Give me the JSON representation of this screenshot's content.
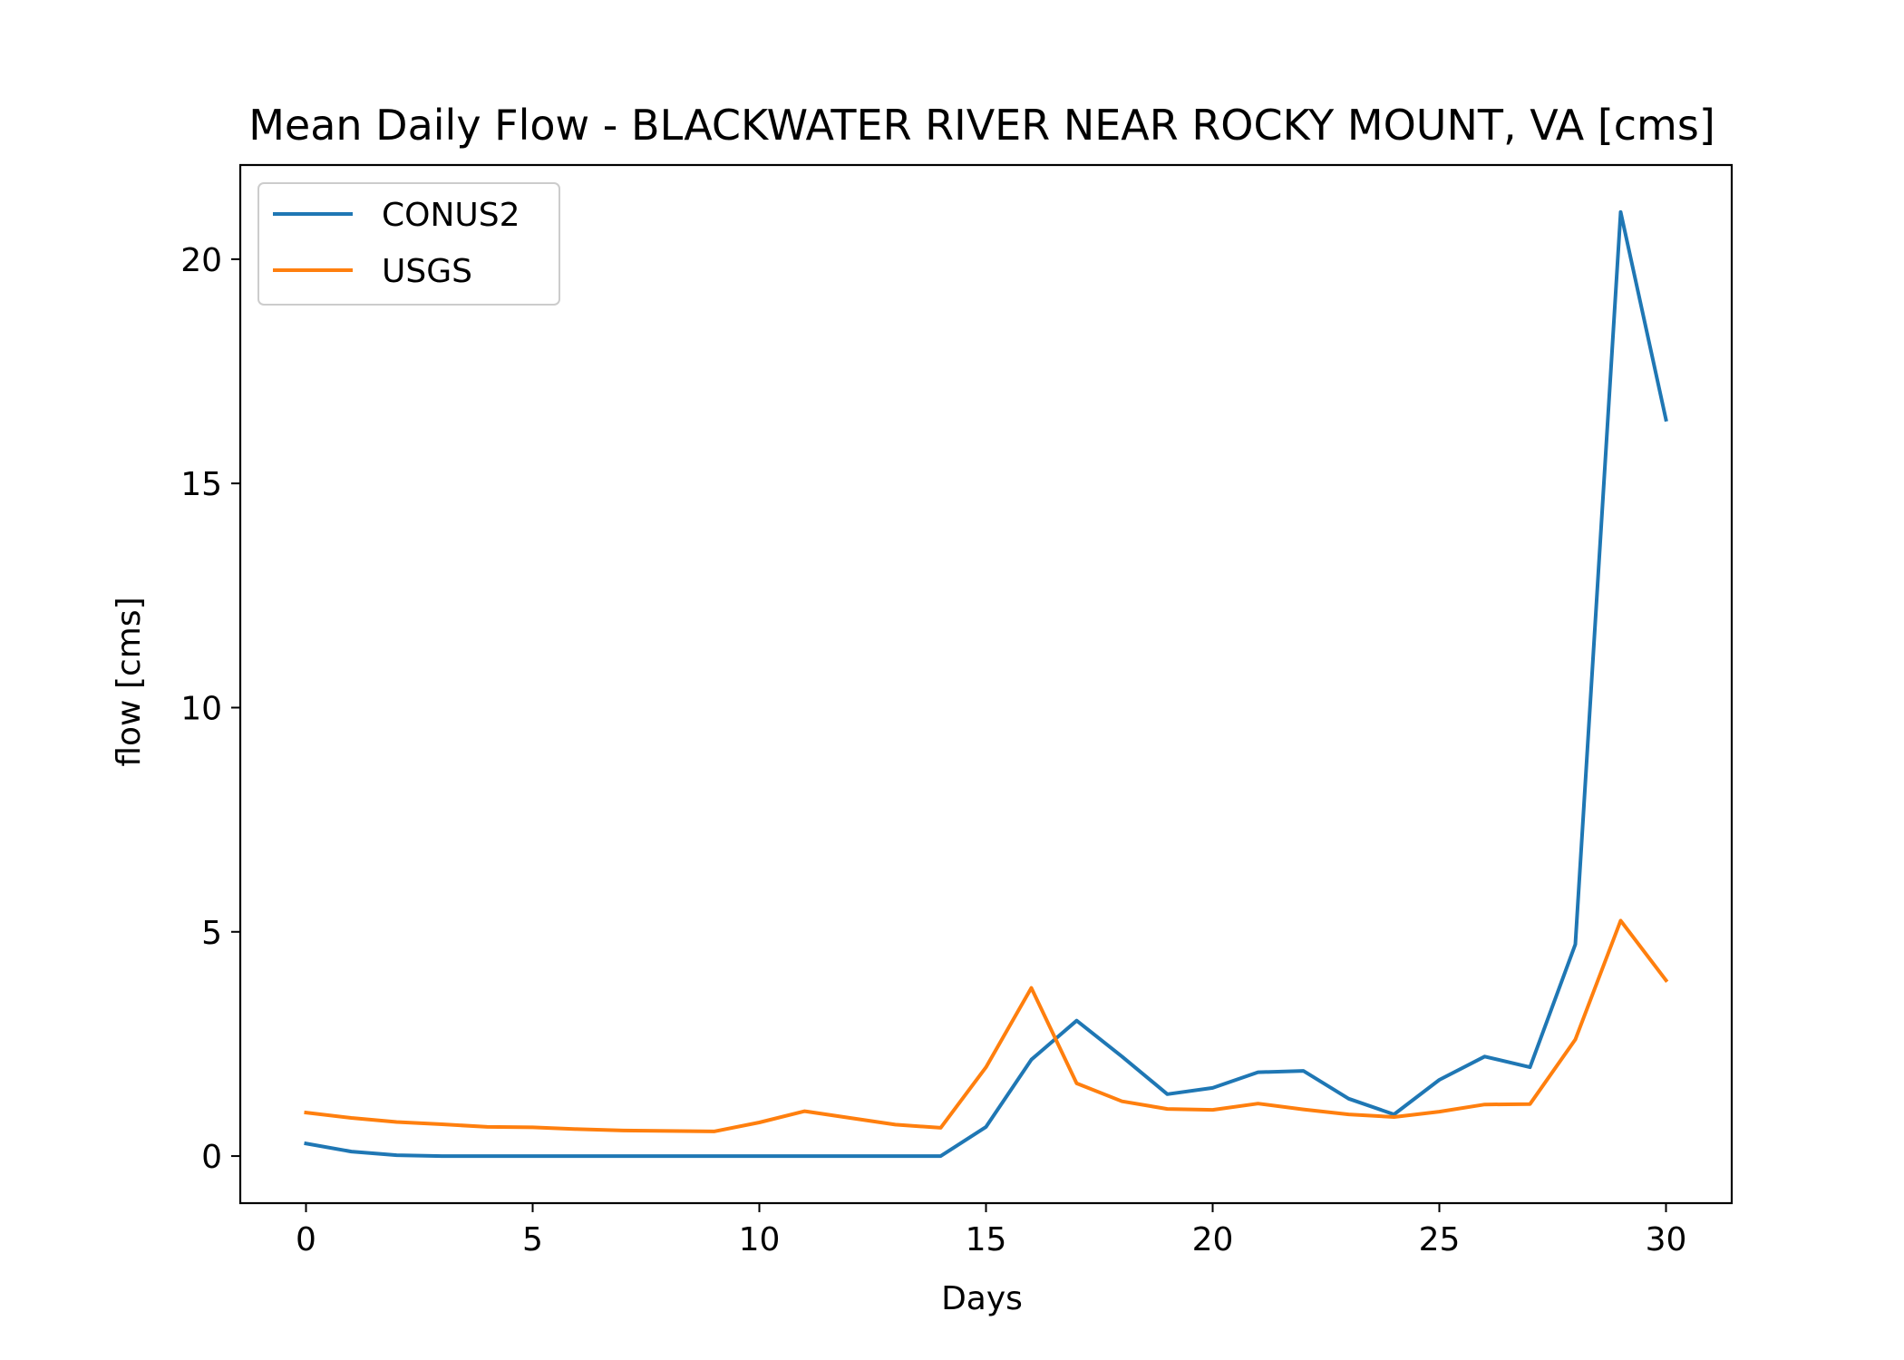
{
  "chart_data": {
    "type": "line",
    "title": "Mean Daily Flow - BLACKWATER RIVER NEAR ROCKY MOUNT, VA [cms]",
    "xlabel": "Days",
    "ylabel": "flow [cms]",
    "xlim": [
      -1.45,
      31.45
    ],
    "ylim": [
      -1.05,
      22.1
    ],
    "xticks": [
      0,
      5,
      10,
      15,
      20,
      25,
      30
    ],
    "yticks": [
      0,
      5,
      10,
      15,
      20
    ],
    "grid": false,
    "legend_position": "top-left",
    "x": [
      0,
      1,
      2,
      3,
      4,
      5,
      6,
      7,
      8,
      9,
      10,
      11,
      12,
      13,
      14,
      15,
      16,
      17,
      18,
      19,
      20,
      21,
      22,
      23,
      24,
      25,
      26,
      27,
      28,
      29,
      30
    ],
    "series": [
      {
        "name": "CONUS2",
        "color": "#1f77b4",
        "values": [
          0.28,
          0.1,
          0.02,
          0.0,
          0.0,
          0.0,
          0.0,
          0.0,
          0.0,
          0.0,
          0.0,
          0.0,
          0.0,
          0.0,
          0.0,
          0.65,
          2.15,
          3.02,
          2.22,
          1.38,
          1.52,
          1.87,
          1.9,
          1.28,
          0.93,
          1.7,
          2.22,
          1.98,
          4.72,
          21.05,
          16.42
        ]
      },
      {
        "name": "USGS",
        "color": "#ff7f0e",
        "values": [
          0.97,
          0.85,
          0.76,
          0.71,
          0.65,
          0.64,
          0.6,
          0.57,
          0.56,
          0.55,
          0.75,
          1.0,
          0.85,
          0.7,
          0.63,
          1.98,
          3.75,
          1.62,
          1.22,
          1.05,
          1.03,
          1.17,
          1.04,
          0.93,
          0.87,
          0.99,
          1.15,
          1.16,
          2.6,
          5.25,
          3.92
        ]
      }
    ]
  }
}
